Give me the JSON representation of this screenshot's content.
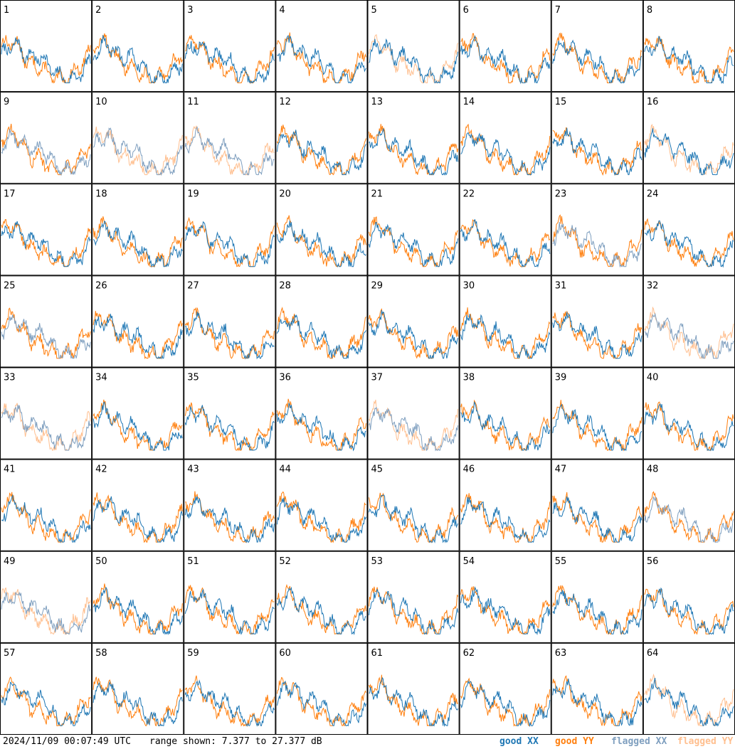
{
  "footer": {
    "timestamp": "2024/11/09 00:07:49 UTC",
    "range": "range shown: 7.377 to 27.377 dB"
  },
  "legend": {
    "good_xx": "good XX",
    "good_yy": "good YY",
    "flagged_xx": "flagged XX",
    "flagged_yy": "flagged YY"
  },
  "colors": {
    "good_xx": "#1f77b4",
    "good_yy": "#ff7f0e",
    "flagged_xx": "#7f9fbf",
    "flagged_yy": "#ffbf8f"
  },
  "chart_data": {
    "type": "line",
    "grid": "8x8 small multiples",
    "ylim_db": [
      7.377,
      27.377
    ],
    "panels": [
      {
        "label": "1",
        "xx": "good",
        "yy": "good"
      },
      {
        "label": "2",
        "xx": "good",
        "yy": "good"
      },
      {
        "label": "3",
        "xx": "good",
        "yy": "good"
      },
      {
        "label": "4",
        "xx": "good",
        "yy": "good"
      },
      {
        "label": "5",
        "xx": "good",
        "yy": "flagged"
      },
      {
        "label": "6",
        "xx": "good",
        "yy": "good"
      },
      {
        "label": "7",
        "xx": "good",
        "yy": "good"
      },
      {
        "label": "8",
        "xx": "good",
        "yy": "good"
      },
      {
        "label": "9",
        "xx": "flagged",
        "yy": "good"
      },
      {
        "label": "10",
        "xx": "flagged",
        "yy": "flagged"
      },
      {
        "label": "11",
        "xx": "flagged",
        "yy": "flagged"
      },
      {
        "label": "12",
        "xx": "good",
        "yy": "good"
      },
      {
        "label": "13",
        "xx": "good",
        "yy": "good"
      },
      {
        "label": "14",
        "xx": "good",
        "yy": "good"
      },
      {
        "label": "15",
        "xx": "good",
        "yy": "good"
      },
      {
        "label": "16",
        "xx": "good",
        "yy": "flagged"
      },
      {
        "label": "17",
        "xx": "good",
        "yy": "good"
      },
      {
        "label": "18",
        "xx": "good",
        "yy": "good"
      },
      {
        "label": "19",
        "xx": "good",
        "yy": "good"
      },
      {
        "label": "20",
        "xx": "good",
        "yy": "good"
      },
      {
        "label": "21",
        "xx": "good",
        "yy": "good"
      },
      {
        "label": "22",
        "xx": "good",
        "yy": "good"
      },
      {
        "label": "23",
        "xx": "flagged",
        "yy": "good"
      },
      {
        "label": "24",
        "xx": "good",
        "yy": "good"
      },
      {
        "label": "25",
        "xx": "flagged",
        "yy": "good"
      },
      {
        "label": "26",
        "xx": "good",
        "yy": "good"
      },
      {
        "label": "27",
        "xx": "good",
        "yy": "good"
      },
      {
        "label": "28",
        "xx": "good",
        "yy": "good"
      },
      {
        "label": "29",
        "xx": "good",
        "yy": "good"
      },
      {
        "label": "30",
        "xx": "good",
        "yy": "good"
      },
      {
        "label": "31",
        "xx": "good",
        "yy": "good"
      },
      {
        "label": "32",
        "xx": "flagged",
        "yy": "flagged"
      },
      {
        "label": "33",
        "xx": "flagged",
        "yy": "flagged"
      },
      {
        "label": "34",
        "xx": "good",
        "yy": "good"
      },
      {
        "label": "35",
        "xx": "good",
        "yy": "good"
      },
      {
        "label": "36",
        "xx": "good",
        "yy": "good"
      },
      {
        "label": "37",
        "xx": "flagged",
        "yy": "flagged"
      },
      {
        "label": "38",
        "xx": "good",
        "yy": "good"
      },
      {
        "label": "39",
        "xx": "good",
        "yy": "good"
      },
      {
        "label": "40",
        "xx": "good",
        "yy": "good"
      },
      {
        "label": "41",
        "xx": "good",
        "yy": "good"
      },
      {
        "label": "42",
        "xx": "good",
        "yy": "good"
      },
      {
        "label": "43",
        "xx": "good",
        "yy": "good"
      },
      {
        "label": "44",
        "xx": "good",
        "yy": "good"
      },
      {
        "label": "45",
        "xx": "good",
        "yy": "good"
      },
      {
        "label": "46",
        "xx": "good",
        "yy": "good"
      },
      {
        "label": "47",
        "xx": "good",
        "yy": "good"
      },
      {
        "label": "48",
        "xx": "flagged",
        "yy": "good"
      },
      {
        "label": "49",
        "xx": "flagged",
        "yy": "flagged"
      },
      {
        "label": "50",
        "xx": "good",
        "yy": "good"
      },
      {
        "label": "51",
        "xx": "good",
        "yy": "good"
      },
      {
        "label": "52",
        "xx": "good",
        "yy": "good"
      },
      {
        "label": "53",
        "xx": "good",
        "yy": "good"
      },
      {
        "label": "54",
        "xx": "good",
        "yy": "good"
      },
      {
        "label": "55",
        "xx": "good",
        "yy": "good"
      },
      {
        "label": "56",
        "xx": "good",
        "yy": "good"
      },
      {
        "label": "57",
        "xx": "good",
        "yy": "good"
      },
      {
        "label": "58",
        "xx": "good",
        "yy": "good"
      },
      {
        "label": "59",
        "xx": "good",
        "yy": "good"
      },
      {
        "label": "60",
        "xx": "good",
        "yy": "good"
      },
      {
        "label": "61",
        "xx": "good",
        "yy": "good"
      },
      {
        "label": "62",
        "xx": "good",
        "yy": "good"
      },
      {
        "label": "63",
        "xx": "good",
        "yy": "good"
      },
      {
        "label": "64",
        "xx": "good",
        "yy": "flagged"
      }
    ]
  }
}
